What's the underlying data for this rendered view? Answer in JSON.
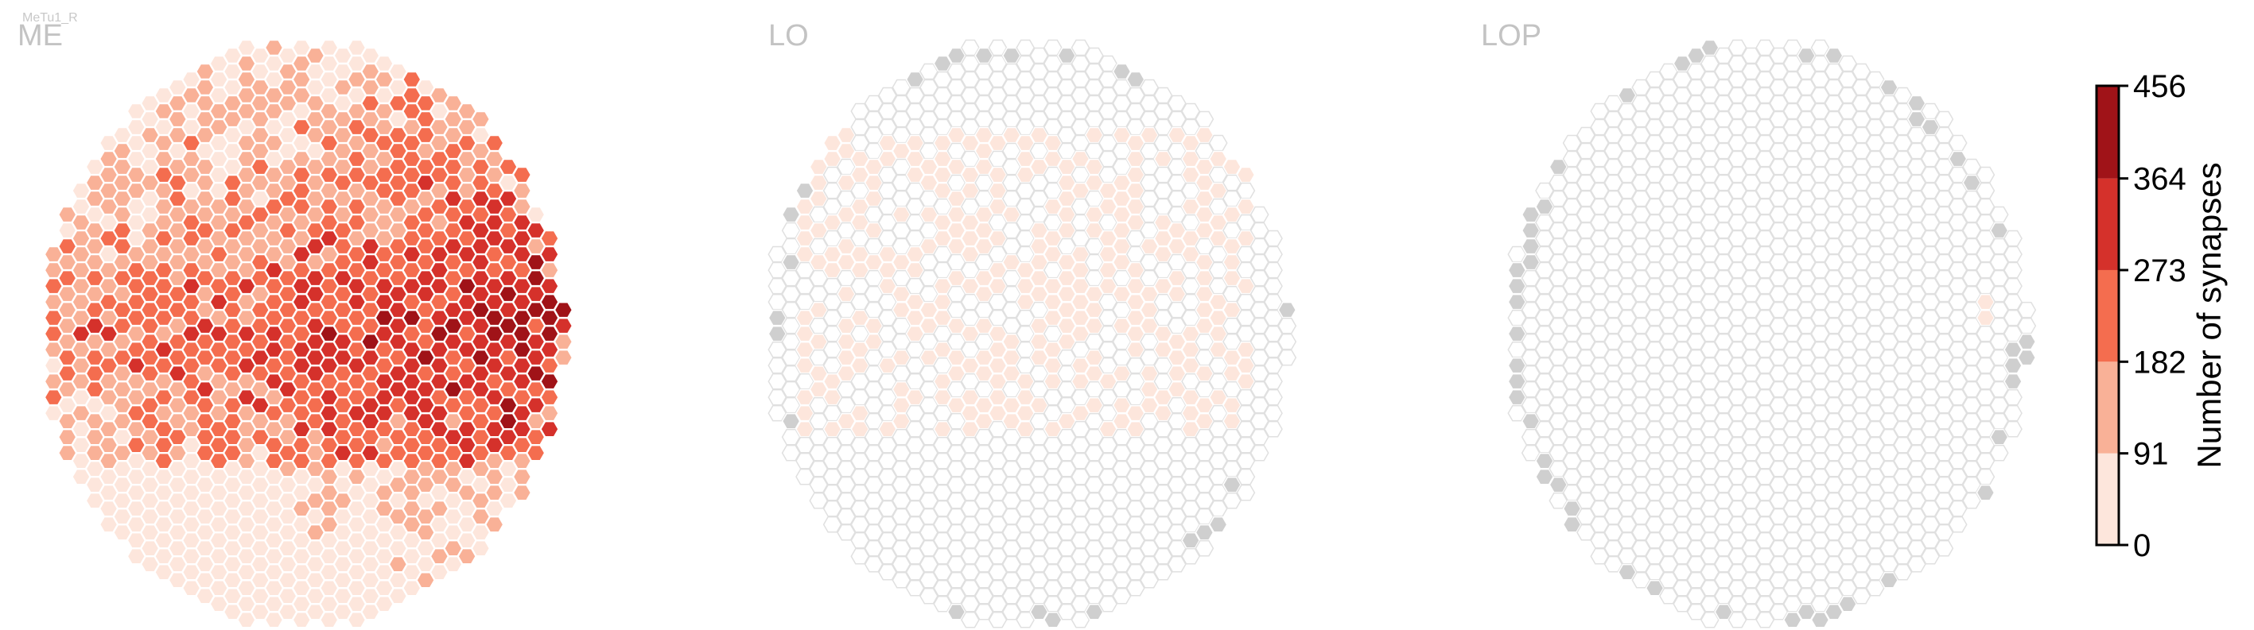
{
  "figure": {
    "cell_type": "MeTu1_R"
  },
  "chart_data": {
    "type": "heatmap",
    "description_of_values": "per-column synapse counts on hexagonal eye-map grids",
    "panels": [
      {
        "title": "ME",
        "summary": {
          "min_count": 0,
          "max_count": 456,
          "typical_range": [
            91,
            364
          ],
          "hotspot": "right-central band (values 364-456)"
        }
      },
      {
        "title": "LO",
        "summary": {
          "min_count": 0,
          "max_count": 91,
          "typical_range": [
            0,
            91
          ],
          "note": "faint coverage in central/upper region; remaining columns empty"
        }
      },
      {
        "title": "LOP",
        "summary": {
          "min_count": 0,
          "max_count": 91,
          "typical_range": [
            0,
            0
          ],
          "note": "a single faint column on the right; rest empty"
        }
      }
    ],
    "colorbar": {
      "label": "Number of synapses",
      "ticks": [
        0,
        91,
        182,
        273,
        364,
        456
      ],
      "bins": [
        {
          "range": [
            0,
            91
          ],
          "color": "#fde6dc"
        },
        {
          "range": [
            91,
            182
          ],
          "color": "#f9b197"
        },
        {
          "range": [
            182,
            273
          ],
          "color": "#f46d4f"
        },
        {
          "range": [
            273,
            364
          ],
          "color": "#d5312b"
        },
        {
          "range": [
            364,
            456
          ],
          "color": "#a01318"
        }
      ]
    },
    "colors": {
      "empty_column_stroke": "#e0e0e0",
      "no_data_column": "#cfcfcf"
    }
  }
}
